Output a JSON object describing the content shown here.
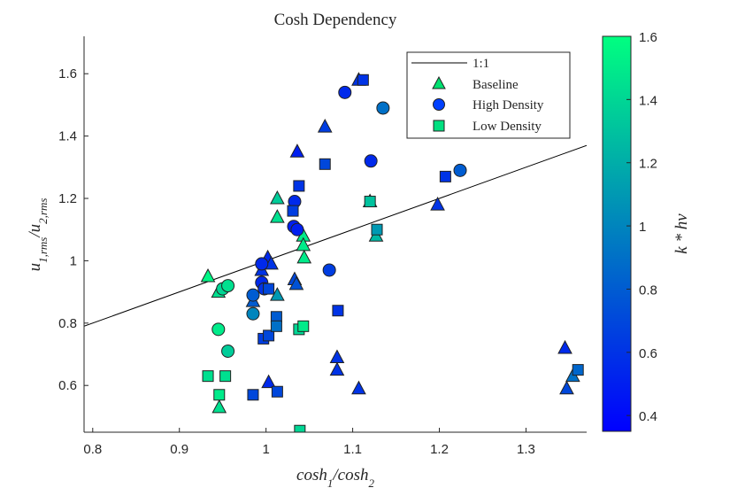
{
  "chart_data": {
    "type": "scatter",
    "title": "Cosh Dependency",
    "xlabel": "cosh_1/cosh_2",
    "ylabel": "u_1,rms/u_2,rms",
    "xlim": [
      0.79,
      1.37
    ],
    "ylim": [
      0.45,
      1.72
    ],
    "x_ticks": [
      "0.8",
      "0.9",
      "1",
      "1.1",
      "1.2",
      "1.3"
    ],
    "y_ticks": [
      "0.6",
      "0.8",
      "1",
      "1.2",
      "1.4",
      "1.6"
    ],
    "grid": false,
    "legend_position": "top-right",
    "reference_line": {
      "name": "1:1",
      "slope": 1,
      "intercept": 0
    },
    "colorbar": {
      "label": "k*hv",
      "range": [
        0.35,
        1.6
      ],
      "ticks": [
        "0.4",
        "0.6",
        "0.8",
        "1",
        "1.2",
        "1.4",
        "1.6"
      ],
      "low_color": "#0000ff",
      "high_color": "#00ff80"
    },
    "series": [
      {
        "name": "Baseline",
        "marker": "triangle",
        "points": [
          {
            "x": 0.933,
            "y": 0.95,
            "c": 1.55
          },
          {
            "x": 0.945,
            "y": 0.9,
            "c": 1.45
          },
          {
            "x": 0.946,
            "y": 0.53,
            "c": 1.45
          },
          {
            "x": 0.985,
            "y": 0.87,
            "c": 0.8
          },
          {
            "x": 0.995,
            "y": 0.97,
            "c": 0.6
          },
          {
            "x": 1.002,
            "y": 1.01,
            "c": 0.55
          },
          {
            "x": 1.003,
            "y": 0.61,
            "c": 0.55
          },
          {
            "x": 1.006,
            "y": 0.99,
            "c": 0.6
          },
          {
            "x": 1.013,
            "y": 1.2,
            "c": 1.35
          },
          {
            "x": 1.013,
            "y": 1.14,
            "c": 1.45
          },
          {
            "x": 1.013,
            "y": 0.89,
            "c": 1.1
          },
          {
            "x": 1.033,
            "y": 0.94,
            "c": 0.7
          },
          {
            "x": 1.036,
            "y": 1.35,
            "c": 0.5
          },
          {
            "x": 1.043,
            "y": 1.08,
            "c": 1.5
          },
          {
            "x": 1.043,
            "y": 1.05,
            "c": 1.5
          },
          {
            "x": 1.044,
            "y": 1.01,
            "c": 1.5
          },
          {
            "x": 1.035,
            "y": 0.925,
            "c": 0.75
          },
          {
            "x": 1.068,
            "y": 1.43,
            "c": 0.65
          },
          {
            "x": 1.082,
            "y": 0.69,
            "c": 0.6
          },
          {
            "x": 1.082,
            "y": 0.65,
            "c": 0.6
          },
          {
            "x": 1.107,
            "y": 1.58,
            "c": 0.6
          },
          {
            "x": 1.107,
            "y": 0.59,
            "c": 0.6
          },
          {
            "x": 1.12,
            "y": 1.19,
            "c": 1.3
          },
          {
            "x": 1.127,
            "y": 1.08,
            "c": 1.25
          },
          {
            "x": 1.198,
            "y": 1.18,
            "c": 0.6
          },
          {
            "x": 1.345,
            "y": 0.72,
            "c": 0.55
          },
          {
            "x": 1.347,
            "y": 0.59,
            "c": 0.7
          },
          {
            "x": 1.354,
            "y": 0.63,
            "c": 0.9
          }
        ]
      },
      {
        "name": "High Density",
        "marker": "circle",
        "points": [
          {
            "x": 0.945,
            "y": 0.78,
            "c": 1.5
          },
          {
            "x": 0.95,
            "y": 0.91,
            "c": 1.4
          },
          {
            "x": 0.956,
            "y": 0.92,
            "c": 1.45
          },
          {
            "x": 0.956,
            "y": 0.71,
            "c": 1.35
          },
          {
            "x": 0.985,
            "y": 0.83,
            "c": 1.0
          },
          {
            "x": 0.985,
            "y": 0.89,
            "c": 0.8
          },
          {
            "x": 0.995,
            "y": 0.99,
            "c": 0.55
          },
          {
            "x": 0.995,
            "y": 0.93,
            "c": 0.55
          },
          {
            "x": 0.998,
            "y": 0.91,
            "c": 0.6
          },
          {
            "x": 1.032,
            "y": 1.11,
            "c": 0.5
          },
          {
            "x": 1.033,
            "y": 1.19,
            "c": 0.55
          },
          {
            "x": 1.036,
            "y": 1.1,
            "c": 0.5
          },
          {
            "x": 1.073,
            "y": 0.97,
            "c": 0.65
          },
          {
            "x": 1.091,
            "y": 1.54,
            "c": 0.55
          },
          {
            "x": 1.121,
            "y": 1.32,
            "c": 0.55
          },
          {
            "x": 1.135,
            "y": 1.49,
            "c": 0.9
          },
          {
            "x": 1.224,
            "y": 1.29,
            "c": 0.8
          }
        ]
      },
      {
        "name": "Low Density",
        "marker": "square",
        "points": [
          {
            "x": 0.933,
            "y": 0.63,
            "c": 1.45
          },
          {
            "x": 0.946,
            "y": 0.57,
            "c": 1.5
          },
          {
            "x": 0.953,
            "y": 0.63,
            "c": 1.45
          },
          {
            "x": 0.985,
            "y": 0.57,
            "c": 0.7
          },
          {
            "x": 0.997,
            "y": 0.75,
            "c": 0.65
          },
          {
            "x": 1.003,
            "y": 0.91,
            "c": 0.7
          },
          {
            "x": 1.003,
            "y": 0.76,
            "c": 0.7
          },
          {
            "x": 1.012,
            "y": 0.82,
            "c": 0.8
          },
          {
            "x": 1.012,
            "y": 0.79,
            "c": 0.9
          },
          {
            "x": 1.013,
            "y": 0.58,
            "c": 0.7
          },
          {
            "x": 1.031,
            "y": 1.16,
            "c": 0.65
          },
          {
            "x": 1.038,
            "y": 1.24,
            "c": 0.6
          },
          {
            "x": 1.038,
            "y": 0.78,
            "c": 1.4
          },
          {
            "x": 1.039,
            "y": 0.455,
            "c": 1.4
          },
          {
            "x": 1.043,
            "y": 0.79,
            "c": 1.5
          },
          {
            "x": 1.068,
            "y": 1.31,
            "c": 0.7
          },
          {
            "x": 1.083,
            "y": 0.84,
            "c": 0.6
          },
          {
            "x": 1.112,
            "y": 1.58,
            "c": 0.6
          },
          {
            "x": 1.12,
            "y": 1.19,
            "c": 1.3
          },
          {
            "x": 1.128,
            "y": 1.1,
            "c": 1.1
          },
          {
            "x": 1.207,
            "y": 1.27,
            "c": 0.6
          },
          {
            "x": 1.36,
            "y": 0.65,
            "c": 0.85
          }
        ]
      }
    ]
  }
}
